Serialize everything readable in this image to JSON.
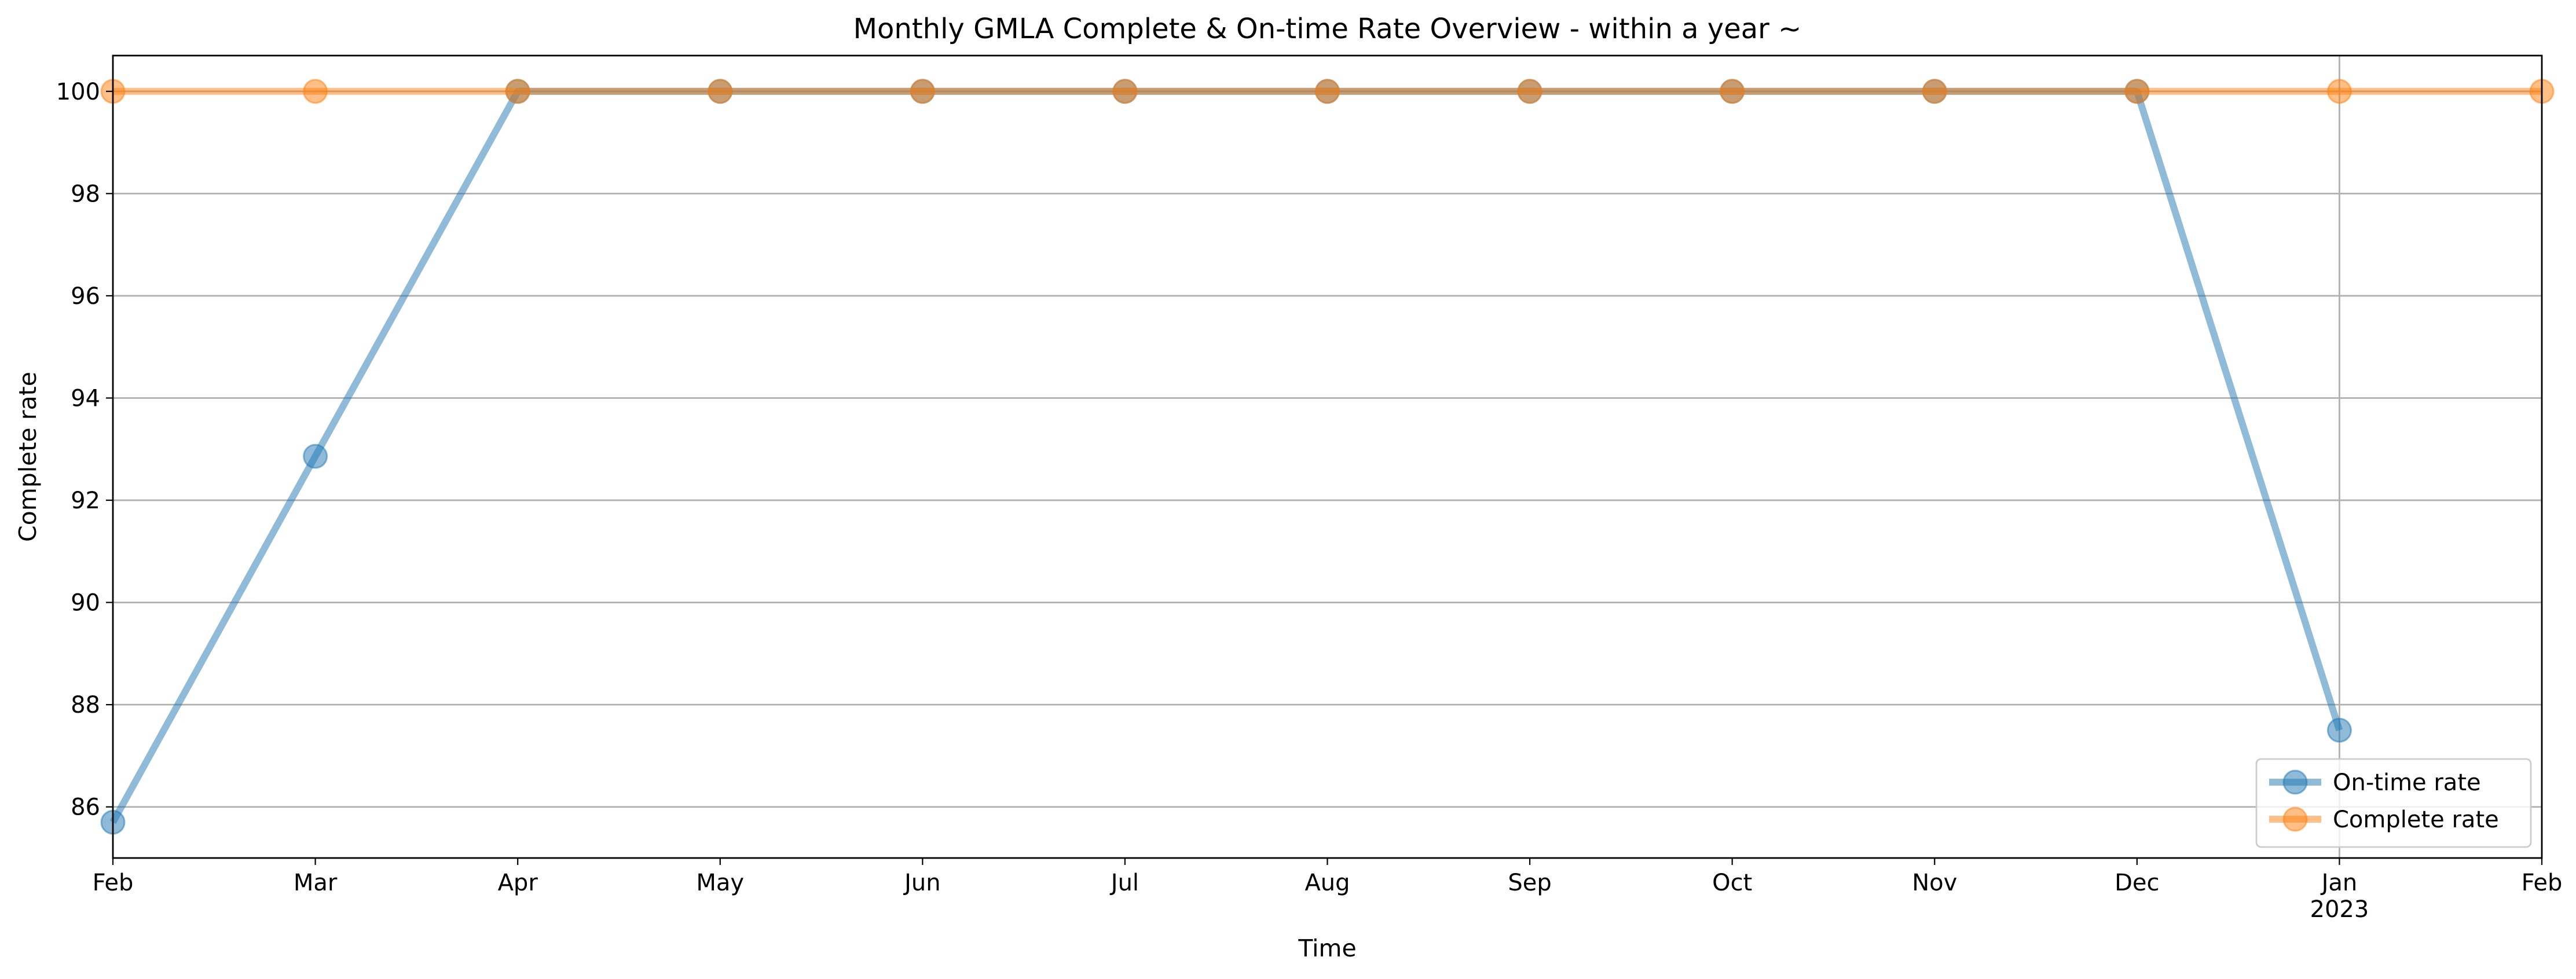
{
  "chart_data": {
    "type": "line",
    "title": "Monthly GMLA Complete & On-time Rate Overview - within a year ~",
    "xlabel": "Time",
    "ylabel": "Complete rate",
    "x_ticks": [
      "Feb",
      "Mar",
      "Apr",
      "May",
      "Jun",
      "Jul",
      "Aug",
      "Sep",
      "Oct",
      "Nov",
      "Dec",
      "Jan",
      "Feb"
    ],
    "x_year_label": "2023",
    "x": [
      "2022-02",
      "2022-03",
      "2022-04",
      "2022-05",
      "2022-06",
      "2022-07",
      "2022-08",
      "2022-09",
      "2022-10",
      "2022-11",
      "2022-12",
      "2023-01",
      "2023-02"
    ],
    "y_ticks": [
      "86",
      "88",
      "90",
      "92",
      "94",
      "96",
      "98",
      "100"
    ],
    "ylim": [
      85.0,
      100.7
    ],
    "grid": "y-major and x at year boundary",
    "legend_position": "bottom-right",
    "series": [
      {
        "name": "On-time rate",
        "color": "#1f77b4",
        "values": [
          85.7,
          92.86,
          100,
          100,
          100,
          100,
          100,
          100,
          100,
          100,
          100,
          87.5,
          null
        ]
      },
      {
        "name": "Complete rate",
        "color": "#ff7f0e",
        "values": [
          100,
          100,
          100,
          100,
          100,
          100,
          100,
          100,
          100,
          100,
          100,
          100,
          100
        ]
      }
    ]
  }
}
